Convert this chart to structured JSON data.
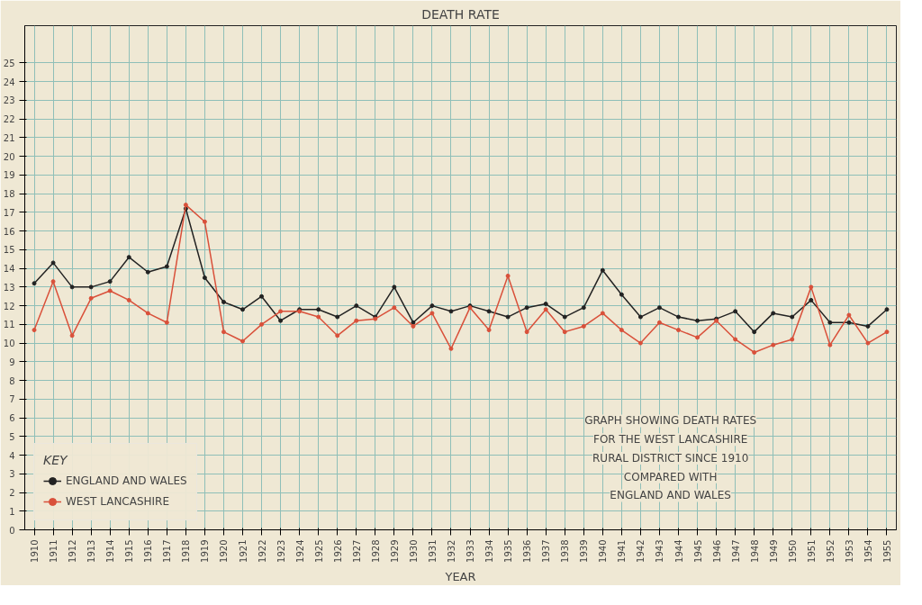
{
  "chart_data": {
    "type": "line",
    "title": "DEATH RATE",
    "xlabel": "YEAR",
    "legend_title": "KEY",
    "categories": [
      "1910",
      "1911",
      "1912",
      "1913",
      "1914",
      "1915",
      "1916",
      "1917",
      "1918",
      "1919",
      "1920",
      "1921",
      "1922",
      "1923",
      "1924",
      "1925",
      "1926",
      "1927",
      "1928",
      "1929",
      "1930",
      "1931",
      "1932",
      "1933",
      "1934",
      "1935",
      "1936",
      "1937",
      "1938",
      "1939",
      "1940",
      "1941",
      "1942",
      "1943",
      "1944",
      "1945",
      "1946",
      "1947",
      "1948",
      "1949",
      "1950",
      "1951",
      "1952",
      "1953",
      "1954",
      "1955"
    ],
    "series": [
      {
        "name": "ENGLAND AND WALES",
        "color": "#222222",
        "values": [
          13.2,
          14.3,
          13.0,
          13.0,
          13.3,
          14.6,
          13.8,
          14.1,
          17.2,
          13.5,
          12.2,
          11.8,
          12.5,
          11.2,
          11.8,
          11.8,
          11.4,
          12.0,
          11.4,
          13.0,
          11.1,
          12.0,
          11.7,
          12.0,
          11.7,
          11.4,
          11.9,
          12.1,
          11.4,
          11.9,
          13.9,
          12.6,
          11.4,
          11.9,
          11.4,
          11.2,
          11.3,
          11.7,
          10.6,
          11.6,
          11.4,
          12.3,
          11.1,
          11.1,
          10.9,
          11.8
        ]
      },
      {
        "name": "WEST LANCASHIRE",
        "color": "#d9503a",
        "values": [
          10.7,
          13.3,
          10.4,
          12.4,
          12.8,
          12.3,
          11.6,
          11.1,
          17.4,
          16.5,
          10.6,
          10.1,
          11.0,
          11.7,
          11.7,
          11.4,
          10.4,
          11.2,
          11.3,
          11.9,
          10.9,
          11.6,
          9.7,
          11.9,
          10.7,
          13.6,
          10.6,
          11.8,
          10.6,
          10.9,
          11.6,
          10.7,
          10.0,
          11.1,
          10.7,
          10.3,
          11.2,
          10.2,
          9.5,
          9.9,
          10.2,
          13.0,
          9.9,
          11.5,
          10.0,
          10.6
        ]
      }
    ],
    "ylim": [
      0,
      27
    ],
    "yticks": [
      0,
      1,
      2,
      3,
      4,
      5,
      6,
      7,
      8,
      9,
      10,
      11,
      12,
      13,
      14,
      15,
      16,
      17,
      18,
      19,
      20,
      21,
      22,
      23,
      24,
      25
    ],
    "grid": true,
    "legend": "bottom left",
    "marker": "circle",
    "line_style": "solid",
    "annotations": [
      "GRAPH SHOWING DEATH RATES",
      "FOR THE WEST LANCASHIRE",
      "RURAL DISTRICT SINCE 1910",
      "COMPARED WITH",
      "ENGLAND AND WALES"
    ]
  }
}
